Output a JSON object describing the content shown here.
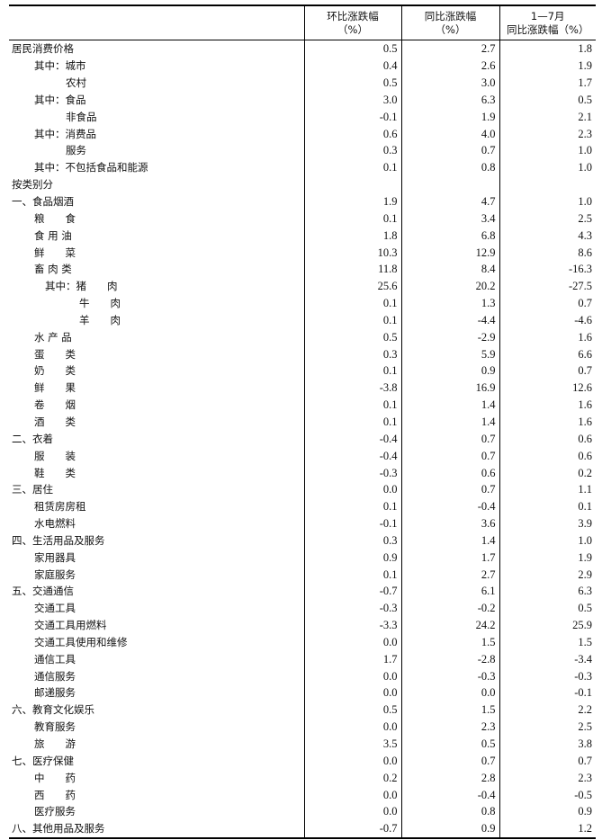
{
  "header": {
    "col0": "",
    "col1": [
      "环比涨跌幅",
      "（%）"
    ],
    "col2": [
      "同比涨跌幅",
      "（%）"
    ],
    "col3": [
      "1—7月",
      "同比涨跌幅（%）"
    ]
  },
  "rows": [
    {
      "label": "居民消费价格",
      "level": "l0",
      "mom": "0.5",
      "yoy": "2.7",
      "ytd": "1.8"
    },
    {
      "label": "其中：城市",
      "level": "l1",
      "mom": "0.4",
      "yoy": "2.6",
      "ytd": "1.9"
    },
    {
      "label": "农村",
      "level": "l1b",
      "mom": "0.5",
      "yoy": "3.0",
      "ytd": "1.7"
    },
    {
      "label": "其中：食品",
      "level": "l1",
      "mom": "3.0",
      "yoy": "6.3",
      "ytd": "0.5"
    },
    {
      "label": "非食品",
      "level": "l1b",
      "mom": "-0.1",
      "yoy": "1.9",
      "ytd": "2.1"
    },
    {
      "label": "其中：消费品",
      "level": "l1",
      "mom": "0.6",
      "yoy": "4.0",
      "ytd": "2.3"
    },
    {
      "label": "服务",
      "level": "l1b",
      "mom": "0.3",
      "yoy": "0.7",
      "ytd": "1.0"
    },
    {
      "label": "其中：不包括食品和能源",
      "level": "l1",
      "mom": "0.1",
      "yoy": "0.8",
      "ytd": "1.0"
    },
    {
      "label": "按类别分",
      "level": "l0",
      "mom": "",
      "yoy": "",
      "ytd": ""
    },
    {
      "label": "一、食品烟酒",
      "level": "l0",
      "mom": "1.9",
      "yoy": "4.7",
      "ytd": "1.0"
    },
    {
      "label": "粮　　食",
      "level": "l1",
      "mom": "0.1",
      "yoy": "3.4",
      "ytd": "2.5"
    },
    {
      "label": "食 用 油",
      "level": "l1",
      "mom": "1.8",
      "yoy": "6.8",
      "ytd": "4.3"
    },
    {
      "label": "鲜　　菜",
      "level": "l1",
      "mom": "10.3",
      "yoy": "12.9",
      "ytd": "8.6"
    },
    {
      "label": "畜 肉 类",
      "level": "l1",
      "mom": "11.8",
      "yoy": "8.4",
      "ytd": "-16.3"
    },
    {
      "label": "其中：猪　　肉",
      "level": "l2",
      "mom": "25.6",
      "yoy": "20.2",
      "ytd": "-27.5"
    },
    {
      "label": "牛　　肉",
      "level": "l3",
      "mom": "0.1",
      "yoy": "1.3",
      "ytd": "0.7"
    },
    {
      "label": "羊　　肉",
      "level": "l3",
      "mom": "0.1",
      "yoy": "-4.4",
      "ytd": "-4.6"
    },
    {
      "label": "水 产 品",
      "level": "l1",
      "mom": "0.5",
      "yoy": "-2.9",
      "ytd": "1.6"
    },
    {
      "label": "蛋　　类",
      "level": "l1",
      "mom": "0.3",
      "yoy": "5.9",
      "ytd": "6.6"
    },
    {
      "label": "奶　　类",
      "level": "l1",
      "mom": "0.1",
      "yoy": "0.9",
      "ytd": "0.7"
    },
    {
      "label": "鲜　　果",
      "level": "l1",
      "mom": "-3.8",
      "yoy": "16.9",
      "ytd": "12.6"
    },
    {
      "label": "卷　　烟",
      "level": "l1",
      "mom": "0.1",
      "yoy": "1.4",
      "ytd": "1.6"
    },
    {
      "label": "酒　　类",
      "level": "l1",
      "mom": "0.1",
      "yoy": "1.4",
      "ytd": "1.6"
    },
    {
      "label": "二、衣着",
      "level": "l0",
      "mom": "-0.4",
      "yoy": "0.7",
      "ytd": "0.6"
    },
    {
      "label": "服　　装",
      "level": "l1",
      "mom": "-0.4",
      "yoy": "0.7",
      "ytd": "0.6"
    },
    {
      "label": "鞋　　类",
      "level": "l1",
      "mom": "-0.3",
      "yoy": "0.6",
      "ytd": "0.2"
    },
    {
      "label": "三、居住",
      "level": "l0",
      "mom": "0.0",
      "yoy": "0.7",
      "ytd": "1.1"
    },
    {
      "label": "租赁房房租",
      "level": "l1",
      "mom": "0.1",
      "yoy": "-0.4",
      "ytd": "0.1"
    },
    {
      "label": "水电燃料",
      "level": "l1",
      "mom": "-0.1",
      "yoy": "3.6",
      "ytd": "3.9"
    },
    {
      "label": "四、生活用品及服务",
      "level": "l0",
      "mom": "0.3",
      "yoy": "1.4",
      "ytd": "1.0"
    },
    {
      "label": "家用器具",
      "level": "l1",
      "mom": "0.9",
      "yoy": "1.7",
      "ytd": "1.9"
    },
    {
      "label": "家庭服务",
      "level": "l1",
      "mom": "0.1",
      "yoy": "2.7",
      "ytd": "2.9"
    },
    {
      "label": "五、交通通信",
      "level": "l0",
      "mom": "-0.7",
      "yoy": "6.1",
      "ytd": "6.3"
    },
    {
      "label": "交通工具",
      "level": "l1",
      "mom": "-0.3",
      "yoy": "-0.2",
      "ytd": "0.5"
    },
    {
      "label": "交通工具用燃料",
      "level": "l1",
      "mom": "-3.3",
      "yoy": "24.2",
      "ytd": "25.9"
    },
    {
      "label": "交通工具使用和维修",
      "level": "l1",
      "mom": "0.0",
      "yoy": "1.5",
      "ytd": "1.5"
    },
    {
      "label": "通信工具",
      "level": "l1",
      "mom": "1.7",
      "yoy": "-2.8",
      "ytd": "-3.4"
    },
    {
      "label": "通信服务",
      "level": "l1",
      "mom": "0.0",
      "yoy": "-0.3",
      "ytd": "-0.3"
    },
    {
      "label": "邮递服务",
      "level": "l1",
      "mom": "0.0",
      "yoy": "0.0",
      "ytd": "-0.1"
    },
    {
      "label": "六、教育文化娱乐",
      "level": "l0",
      "mom": "0.5",
      "yoy": "1.5",
      "ytd": "2.2"
    },
    {
      "label": "教育服务",
      "level": "l1",
      "mom": "0.0",
      "yoy": "2.3",
      "ytd": "2.5"
    },
    {
      "label": "旅　　游",
      "level": "l1",
      "mom": "3.5",
      "yoy": "0.5",
      "ytd": "3.8"
    },
    {
      "label": "七、医疗保健",
      "level": "l0",
      "mom": "0.0",
      "yoy": "0.7",
      "ytd": "0.7"
    },
    {
      "label": "中　　药",
      "level": "l1",
      "mom": "0.2",
      "yoy": "2.8",
      "ytd": "2.3"
    },
    {
      "label": "西　　药",
      "level": "l1",
      "mom": "0.0",
      "yoy": "-0.4",
      "ytd": "-0.5"
    },
    {
      "label": "医疗服务",
      "level": "l1",
      "mom": "0.0",
      "yoy": "0.8",
      "ytd": "0.9"
    },
    {
      "label": "八、其他用品及服务",
      "level": "l0",
      "mom": "-0.7",
      "yoy": "0.9",
      "ytd": "1.2"
    }
  ]
}
